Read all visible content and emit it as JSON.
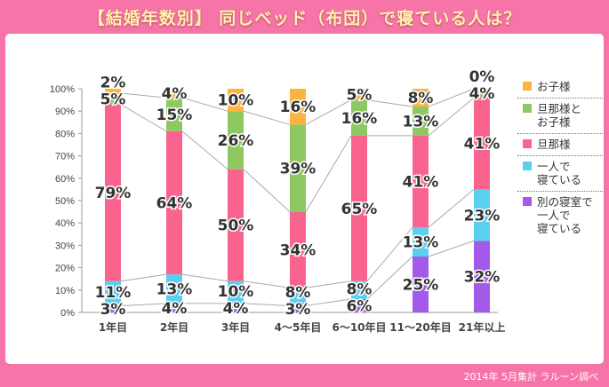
{
  "title": "【結婚年数別】 同じベッド（布団）で寝ている人は？",
  "footer": "2014年 5月集計 ラルーン調べ",
  "chart_data": {
    "type": "bar",
    "stacked": true,
    "title": "【結婚年数別】 同じベッド（布団）で寝ている人は？",
    "categories": [
      "1年目",
      "2年目",
      "3年目",
      "4～5年目",
      "6～10年目",
      "11～20年目",
      "21年以上"
    ],
    "series": [
      {
        "name": "別の寝室で\n一人で\n寝ている",
        "color": "#a45ae8",
        "values": [
          3,
          4,
          4,
          3,
          6,
          25,
          32
        ]
      },
      {
        "name": "一人で\n寝ている",
        "color": "#5bd0ee",
        "values": [
          11,
          13,
          10,
          8,
          8,
          13,
          23
        ]
      },
      {
        "name": "旦那様",
        "color": "#f9648e",
        "values": [
          79,
          64,
          50,
          34,
          65,
          41,
          41
        ]
      },
      {
        "name": "旦那様と\nお子様",
        "color": "#8ec862",
        "values": [
          5,
          15,
          26,
          39,
          16,
          13,
          4
        ]
      },
      {
        "name": "お子様",
        "color": "#fbb440",
        "values": [
          2,
          4,
          10,
          16,
          5,
          8,
          0
        ]
      }
    ],
    "yticks": [
      "0%",
      "10%",
      "20%",
      "30%",
      "40%",
      "50%",
      "60%",
      "70%",
      "80%",
      "90%",
      "100%"
    ],
    "ylim": [
      0,
      100
    ],
    "legend": "right",
    "grid": false
  }
}
